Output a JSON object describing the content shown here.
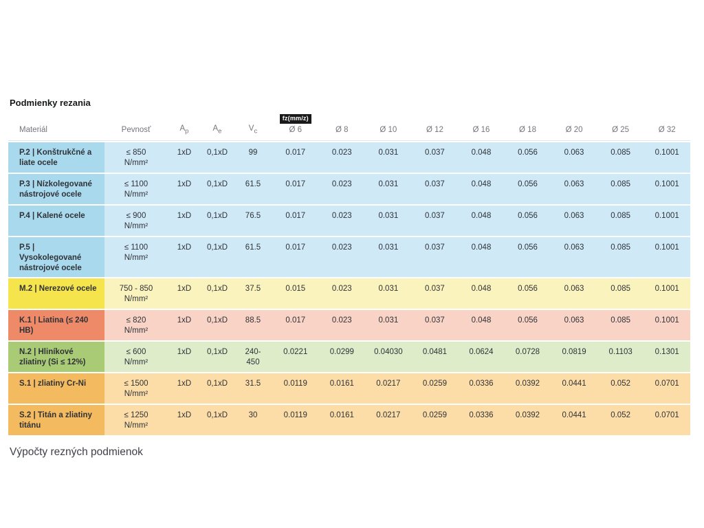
{
  "page": {
    "title": "Podmienky rezania",
    "footer": "Výpočty rezných podmienok"
  },
  "colors": {
    "cell_text": "#2f3238",
    "header_text": "#75767c",
    "fz_badge_bg": "#1a1a1a",
    "fz_badge_fg": "#ffffff",
    "groups": {
      "P": {
        "material_bg": "#a9d9ec",
        "row_bg": "#cfe9f6"
      },
      "M": {
        "material_bg": "#f5e44c",
        "row_bg": "#fbf3bd"
      },
      "K": {
        "material_bg": "#ef8a69",
        "row_bg": "#f9d4c6"
      },
      "N": {
        "material_bg": "#aacb75",
        "row_bg": "#deecca"
      },
      "S": {
        "material_bg": "#f4ba5f",
        "row_bg": "#fcdda8"
      }
    }
  },
  "table": {
    "headers": {
      "material": "Materiál",
      "strength": "Pevnosť",
      "params": [
        {
          "base": "A",
          "sub": "p"
        },
        {
          "base": "A",
          "sub": "e"
        },
        {
          "base": "V",
          "sub": "c"
        }
      ],
      "fz_label": "fz(mm/z)",
      "diameters": [
        "Ø 6",
        "Ø 8",
        "Ø 10",
        "Ø 12",
        "Ø 16",
        "Ø 18",
        "Ø 20",
        "Ø 25",
        "Ø 32"
      ]
    },
    "rows": [
      {
        "group": "P",
        "material": "P.2 | Konštrukčné a liate ocele",
        "strength": "≤ 850",
        "unit": "N/mm²",
        "ap": "1xD",
        "ae": "0,1xD",
        "vc": "99",
        "fz": [
          "0.017",
          "0.023",
          "0.031",
          "0.037",
          "0.048",
          "0.056",
          "0.063",
          "0.085",
          "0.1001"
        ]
      },
      {
        "group": "P",
        "material": "P.3 | Nízkolegované nástrojové ocele",
        "strength": "≤ 1100",
        "unit": "N/mm²",
        "ap": "1xD",
        "ae": "0,1xD",
        "vc": "61.5",
        "fz": [
          "0.017",
          "0.023",
          "0.031",
          "0.037",
          "0.048",
          "0.056",
          "0.063",
          "0.085",
          "0.1001"
        ]
      },
      {
        "group": "P",
        "material": "P.4 | Kalené ocele",
        "strength": "≤ 900",
        "unit": "N/mm²",
        "ap": "1xD",
        "ae": "0,1xD",
        "vc": "76.5",
        "fz": [
          "0.017",
          "0.023",
          "0.031",
          "0.037",
          "0.048",
          "0.056",
          "0.063",
          "0.085",
          "0.1001"
        ]
      },
      {
        "group": "P",
        "material": "P.5 | Vysokolegované nástrojové ocele",
        "strength": "≤ 1100",
        "unit": "N/mm²",
        "ap": "1xD",
        "ae": "0,1xD",
        "vc": "61.5",
        "fz": [
          "0.017",
          "0.023",
          "0.031",
          "0.037",
          "0.048",
          "0.056",
          "0.063",
          "0.085",
          "0.1001"
        ]
      },
      {
        "group": "M",
        "material": "M.2 | Nerezové ocele",
        "strength": "750 - 850",
        "unit": "N/mm²",
        "ap": "1xD",
        "ae": "0,1xD",
        "vc": "37.5",
        "fz": [
          "0.015",
          "0.023",
          "0.031",
          "0.037",
          "0.048",
          "0.056",
          "0.063",
          "0.085",
          "0.1001"
        ]
      },
      {
        "group": "K",
        "material": "K.1 | Liatina (≤ 240 HB)",
        "strength": "≤ 820",
        "unit": "N/mm²",
        "ap": "1xD",
        "ae": "0,1xD",
        "vc": "88.5",
        "fz": [
          "0.017",
          "0.023",
          "0.031",
          "0.037",
          "0.048",
          "0.056",
          "0.063",
          "0.085",
          "0.1001"
        ]
      },
      {
        "group": "N",
        "material": "N.2 | Hliníkové zliatiny (Si ≤ 12%)",
        "strength": "≤ 600",
        "unit": "N/mm²",
        "ap": "1xD",
        "ae": "0,1xD",
        "vc": "240-\n450",
        "fz": [
          "0.0221",
          "0.0299",
          "0.04030",
          "0.0481",
          "0.0624",
          "0.0728",
          "0.0819",
          "0.1103",
          "0.1301"
        ]
      },
      {
        "group": "S",
        "material": "S.1 | zliatiny Cr-Ni",
        "strength": "≤ 1500",
        "unit": "N/mm²",
        "ap": "1xD",
        "ae": "0,1xD",
        "vc": "31.5",
        "fz": [
          "0.0119",
          "0.0161",
          "0.0217",
          "0.0259",
          "0.0336",
          "0.0392",
          "0.0441",
          "0.052",
          "0.0701"
        ]
      },
      {
        "group": "S",
        "material": "S.2 | Titán a zliatiny titánu",
        "strength": "≤ 1250",
        "unit": "N/mm²",
        "ap": "1xD",
        "ae": "0,1xD",
        "vc": "30",
        "fz": [
          "0.0119",
          "0.0161",
          "0.0217",
          "0.0259",
          "0.0336",
          "0.0392",
          "0.0441",
          "0.052",
          "0.0701"
        ]
      }
    ]
  }
}
